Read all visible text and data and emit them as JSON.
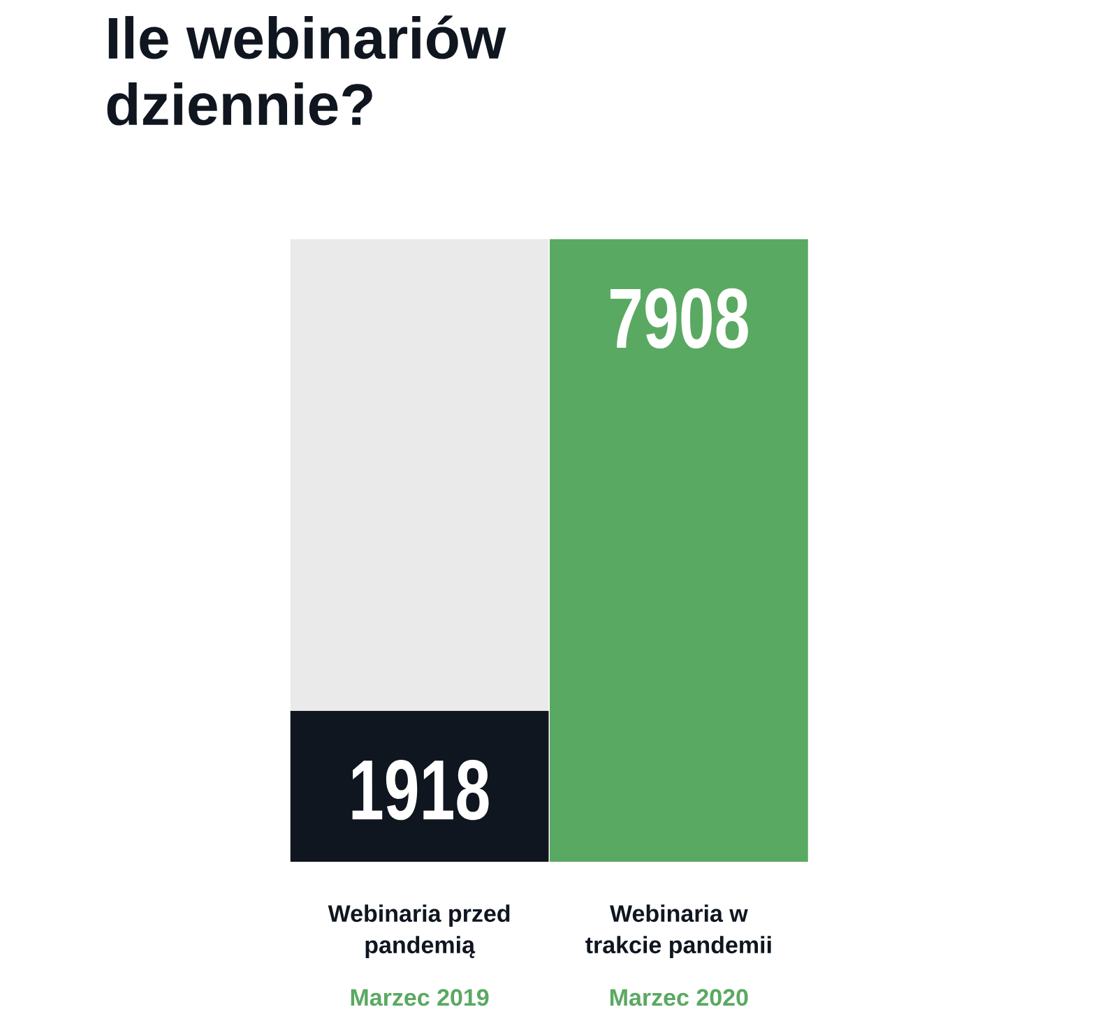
{
  "chart_data": {
    "type": "bar",
    "title": "Ile webinariów dziennie?",
    "categories": [
      "Webinaria przed pandemią",
      "Webinaria w trakcie pandemii"
    ],
    "stacked": true,
    "series": [
      {
        "colors": [
          "#10161f",
          "#5aa962"
        ],
        "values": [
          1918,
          7908
        ],
        "value_labels": [
          "1918",
          "7908"
        ]
      },
      {
        "color": "#ebeaea",
        "values": [
          5990,
          null
        ]
      }
    ],
    "annotations": [
      "Marzec 2019",
      "Marzec 2020"
    ]
  }
}
